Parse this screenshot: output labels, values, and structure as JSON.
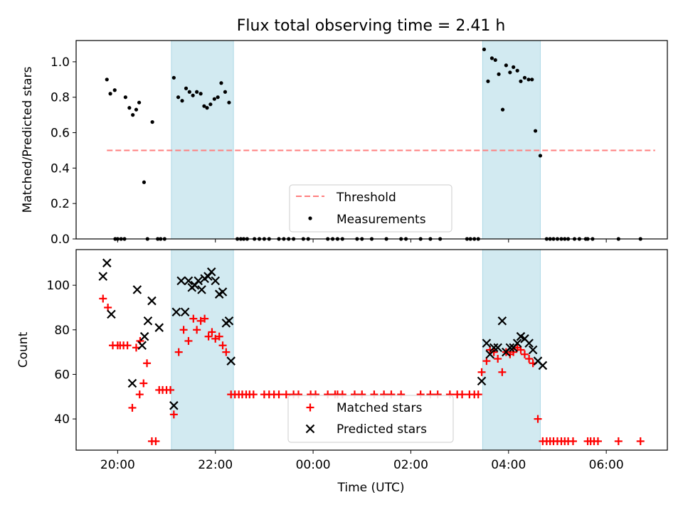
{
  "figure": {
    "title": "Flux total observing time = 2.41 h",
    "xlabel": "Time (UTC)",
    "xticks": [
      "20:00",
      "22:00",
      "00:00",
      "02:00",
      "04:00",
      "06:00"
    ]
  },
  "colors": {
    "shade": "#add8e6",
    "threshold": "#ff7f7f",
    "measurement": "#000000",
    "matched": "#ff0000",
    "predicted": "#000000"
  },
  "chart_data": [
    {
      "type": "scatter",
      "ylabel": "Matched/Predicted stars",
      "x_unit": "hours since 20:00 UTC",
      "xlim": [
        -0.85,
        11.25
      ],
      "ylim": [
        0.0,
        1.12
      ],
      "yticks": [
        "0.0",
        "0.2",
        "0.4",
        "0.6",
        "0.8",
        "1.0"
      ],
      "shaded_intervals": [
        [
          1.1,
          2.37
        ],
        [
          7.47,
          8.65
        ]
      ],
      "threshold": {
        "name": "Threshold",
        "value": 0.5,
        "x_range": [
          -0.22,
          11.0
        ]
      },
      "legend": {
        "position": "lower center",
        "entries": [
          "Threshold",
          "Measurements"
        ]
      },
      "series": [
        {
          "name": "Measurements",
          "points": [
            [
              -0.22,
              0.9
            ],
            [
              -0.15,
              0.82
            ],
            [
              -0.06,
              0.84
            ],
            [
              0.16,
              0.8
            ],
            [
              0.24,
              0.74
            ],
            [
              0.31,
              0.7
            ],
            [
              0.38,
              0.73
            ],
            [
              0.44,
              0.77
            ],
            [
              0.54,
              0.32
            ],
            [
              0.71,
              0.66
            ],
            [
              -0.05,
              0.0
            ],
            [
              0.0,
              0.0
            ],
            [
              0.07,
              0.0
            ],
            [
              0.14,
              0.0
            ],
            [
              0.61,
              0.0
            ],
            [
              0.82,
              0.0
            ],
            [
              0.88,
              0.0
            ],
            [
              0.96,
              0.0
            ],
            [
              1.15,
              0.91
            ],
            [
              1.24,
              0.8
            ],
            [
              1.32,
              0.78
            ],
            [
              1.4,
              0.85
            ],
            [
              1.47,
              0.83
            ],
            [
              1.54,
              0.81
            ],
            [
              1.62,
              0.83
            ],
            [
              1.7,
              0.82
            ],
            [
              1.77,
              0.75
            ],
            [
              1.83,
              0.74
            ],
            [
              1.9,
              0.76
            ],
            [
              1.98,
              0.79
            ],
            [
              2.05,
              0.8
            ],
            [
              2.12,
              0.88
            ],
            [
              2.2,
              0.83
            ],
            [
              2.28,
              0.77
            ],
            [
              2.45,
              0.0
            ],
            [
              2.52,
              0.0
            ],
            [
              2.58,
              0.0
            ],
            [
              2.65,
              0.0
            ],
            [
              2.8,
              0.0
            ],
            [
              2.9,
              0.0
            ],
            [
              3.0,
              0.0
            ],
            [
              3.1,
              0.0
            ],
            [
              3.3,
              0.0
            ],
            [
              3.4,
              0.0
            ],
            [
              3.5,
              0.0
            ],
            [
              3.6,
              0.0
            ],
            [
              3.8,
              0.0
            ],
            [
              3.9,
              0.0
            ],
            [
              4.3,
              0.0
            ],
            [
              4.4,
              0.0
            ],
            [
              4.5,
              0.0
            ],
            [
              4.6,
              0.0
            ],
            [
              4.9,
              0.0
            ],
            [
              5.0,
              0.0
            ],
            [
              5.2,
              0.0
            ],
            [
              5.5,
              0.0
            ],
            [
              5.8,
              0.0
            ],
            [
              5.9,
              0.0
            ],
            [
              6.2,
              0.0
            ],
            [
              6.4,
              0.0
            ],
            [
              6.6,
              0.0
            ],
            [
              7.15,
              0.0
            ],
            [
              7.22,
              0.0
            ],
            [
              7.3,
              0.0
            ],
            [
              7.38,
              0.0
            ],
            [
              7.5,
              1.07
            ],
            [
              7.58,
              0.89
            ],
            [
              7.66,
              1.02
            ],
            [
              7.73,
              1.01
            ],
            [
              7.8,
              0.93
            ],
            [
              7.88,
              0.73
            ],
            [
              7.95,
              0.98
            ],
            [
              8.03,
              0.94
            ],
            [
              8.1,
              0.97
            ],
            [
              8.18,
              0.95
            ],
            [
              8.25,
              0.89
            ],
            [
              8.33,
              0.91
            ],
            [
              8.41,
              0.9
            ],
            [
              8.48,
              0.9
            ],
            [
              8.55,
              0.61
            ],
            [
              8.65,
              0.47
            ],
            [
              8.78,
              0.0
            ],
            [
              8.85,
              0.0
            ],
            [
              8.92,
              0.0
            ],
            [
              9.0,
              0.0
            ],
            [
              9.08,
              0.0
            ],
            [
              9.15,
              0.0
            ],
            [
              9.22,
              0.0
            ],
            [
              9.35,
              0.0
            ],
            [
              9.45,
              0.0
            ],
            [
              9.58,
              0.0
            ],
            [
              9.62,
              0.0
            ],
            [
              9.72,
              0.0
            ],
            [
              10.25,
              0.0
            ],
            [
              10.7,
              0.0
            ]
          ]
        }
      ]
    },
    {
      "type": "scatter",
      "ylabel": "Count",
      "x_unit": "hours since 20:00 UTC",
      "xlim": [
        -0.85,
        11.25
      ],
      "ylim": [
        26,
        116
      ],
      "yticks": [
        "40",
        "60",
        "80",
        "100"
      ],
      "shaded_intervals": [
        [
          1.1,
          2.37
        ],
        [
          7.47,
          8.65
        ]
      ],
      "legend": {
        "position": "lower center",
        "entries": [
          "Matched stars",
          "Predicted stars"
        ]
      },
      "series": [
        {
          "name": "Matched stars",
          "marker": "plus",
          "points": [
            [
              -0.3,
              94
            ],
            [
              -0.2,
              90
            ],
            [
              -0.1,
              73
            ],
            [
              0.0,
              73
            ],
            [
              0.05,
              73
            ],
            [
              0.12,
              73
            ],
            [
              0.2,
              73
            ],
            [
              0.3,
              45
            ],
            [
              0.45,
              51
            ],
            [
              0.53,
              56
            ],
            [
              0.6,
              65
            ],
            [
              0.7,
              30
            ],
            [
              0.78,
              30
            ],
            [
              0.85,
              53
            ],
            [
              0.92,
              53
            ],
            [
              1.0,
              53
            ],
            [
              1.08,
              53
            ],
            [
              1.15,
              42
            ],
            [
              1.25,
              70
            ],
            [
              0.38,
              72
            ],
            [
              0.46,
              75
            ],
            [
              1.35,
              80
            ],
            [
              1.45,
              75
            ],
            [
              1.55,
              85
            ],
            [
              1.62,
              80
            ],
            [
              1.7,
              84
            ],
            [
              1.78,
              85
            ],
            [
              1.86,
              77
            ],
            [
              1.93,
              79
            ],
            [
              2.0,
              76
            ],
            [
              2.08,
              77
            ],
            [
              2.15,
              73
            ],
            [
              2.22,
              70
            ],
            [
              2.32,
              51
            ],
            [
              2.4,
              51
            ],
            [
              2.48,
              51
            ],
            [
              2.55,
              51
            ],
            [
              2.63,
              51
            ],
            [
              2.7,
              51
            ],
            [
              2.78,
              51
            ],
            [
              3.0,
              51
            ],
            [
              3.1,
              51
            ],
            [
              3.2,
              51
            ],
            [
              3.3,
              51
            ],
            [
              3.45,
              51
            ],
            [
              3.6,
              51
            ],
            [
              3.7,
              51
            ],
            [
              3.95,
              51
            ],
            [
              4.05,
              51
            ],
            [
              4.3,
              51
            ],
            [
              4.45,
              51
            ],
            [
              4.5,
              51
            ],
            [
              4.6,
              51
            ],
            [
              4.85,
              51
            ],
            [
              5.0,
              51
            ],
            [
              5.25,
              51
            ],
            [
              5.45,
              51
            ],
            [
              5.6,
              51
            ],
            [
              5.8,
              51
            ],
            [
              6.2,
              51
            ],
            [
              6.4,
              51
            ],
            [
              6.55,
              51
            ],
            [
              6.8,
              51
            ],
            [
              6.95,
              51
            ],
            [
              7.05,
              51
            ],
            [
              7.2,
              51
            ],
            [
              7.3,
              51
            ],
            [
              7.38,
              51
            ],
            [
              7.45,
              61
            ],
            [
              7.55,
              66
            ],
            [
              7.62,
              71
            ],
            [
              7.7,
              70
            ],
            [
              7.78,
              67
            ],
            [
              7.87,
              61
            ],
            [
              7.95,
              70
            ],
            [
              8.03,
              69
            ],
            [
              8.1,
              70
            ],
            [
              8.18,
              72
            ],
            [
              8.25,
              71
            ],
            [
              8.33,
              69
            ],
            [
              8.42,
              67
            ],
            [
              8.5,
              65
            ],
            [
              8.6,
              40
            ],
            [
              8.7,
              30
            ],
            [
              8.78,
              30
            ],
            [
              8.85,
              30
            ],
            [
              8.92,
              30
            ],
            [
              9.0,
              30
            ],
            [
              9.08,
              30
            ],
            [
              9.15,
              30
            ],
            [
              9.22,
              30
            ],
            [
              9.32,
              30
            ],
            [
              9.62,
              30
            ],
            [
              9.68,
              30
            ],
            [
              9.75,
              30
            ],
            [
              9.83,
              30
            ],
            [
              10.25,
              30
            ],
            [
              10.7,
              30
            ]
          ]
        },
        {
          "name": "Predicted stars",
          "marker": "x",
          "points": [
            [
              -0.3,
              104
            ],
            [
              -0.22,
              110
            ],
            [
              -0.13,
              87
            ],
            [
              0.3,
              56
            ],
            [
              0.4,
              98
            ],
            [
              0.5,
              73
            ],
            [
              0.55,
              77
            ],
            [
              0.62,
              84
            ],
            [
              0.7,
              93
            ],
            [
              0.85,
              81
            ],
            [
              1.15,
              46
            ],
            [
              1.2,
              88
            ],
            [
              1.3,
              102
            ],
            [
              1.38,
              88
            ],
            [
              1.45,
              102
            ],
            [
              1.52,
              99
            ],
            [
              1.58,
              100
            ],
            [
              1.65,
              102
            ],
            [
              1.72,
              98
            ],
            [
              1.78,
              103
            ],
            [
              1.85,
              104
            ],
            [
              1.92,
              106
            ],
            [
              2.0,
              102
            ],
            [
              2.08,
              96
            ],
            [
              2.15,
              97
            ],
            [
              2.22,
              83
            ],
            [
              2.28,
              84
            ],
            [
              2.32,
              66
            ],
            [
              7.45,
              57
            ],
            [
              7.55,
              74
            ],
            [
              7.62,
              69
            ],
            [
              7.7,
              72
            ],
            [
              7.78,
              72
            ],
            [
              7.87,
              84
            ],
            [
              7.95,
              70
            ],
            [
              8.03,
              72
            ],
            [
              8.1,
              72
            ],
            [
              8.18,
              74
            ],
            [
              8.25,
              77
            ],
            [
              8.33,
              76
            ],
            [
              8.42,
              74
            ],
            [
              8.5,
              71
            ],
            [
              8.6,
              66
            ],
            [
              8.7,
              64
            ]
          ]
        }
      ]
    }
  ]
}
